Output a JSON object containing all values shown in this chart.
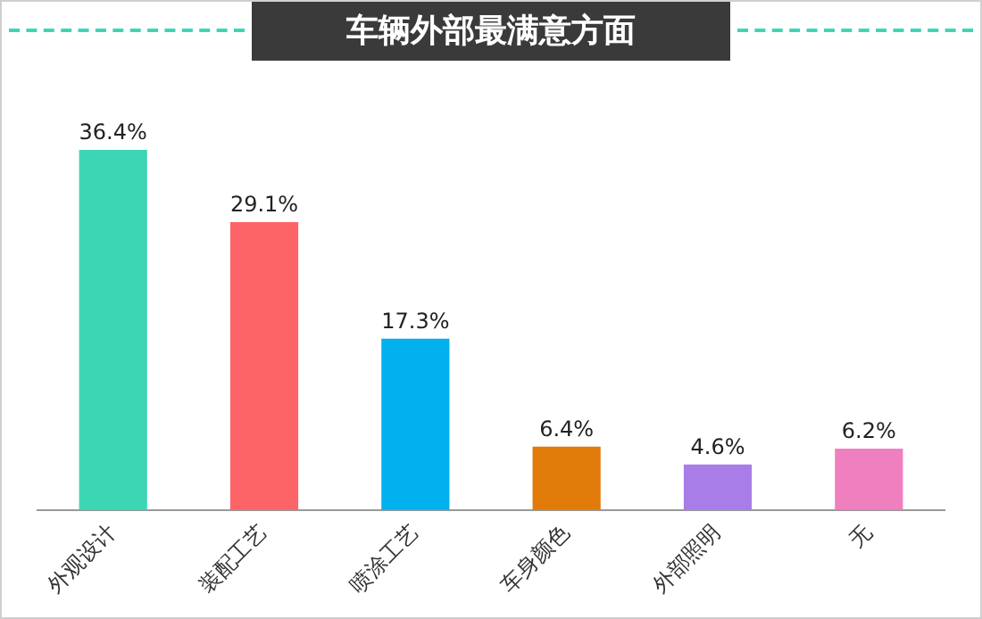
{
  "chart_data": {
    "type": "bar",
    "title": "车辆外部最满意方面",
    "categories": [
      "外观设计",
      "装配工艺",
      "喷涂工艺",
      "车身颜色",
      "外部照明",
      "无"
    ],
    "values": [
      36.4,
      29.1,
      17.3,
      6.4,
      4.6,
      6.2
    ],
    "value_labels": [
      "36.4%",
      "29.1%",
      "17.3%",
      "6.4%",
      "4.6%",
      "6.2%"
    ],
    "colors": [
      "#3dd6b5",
      "#fd6468",
      "#00b0ef",
      "#e07b0a",
      "#a87de8",
      "#f07fc0"
    ],
    "grid": false,
    "legend": false
  }
}
